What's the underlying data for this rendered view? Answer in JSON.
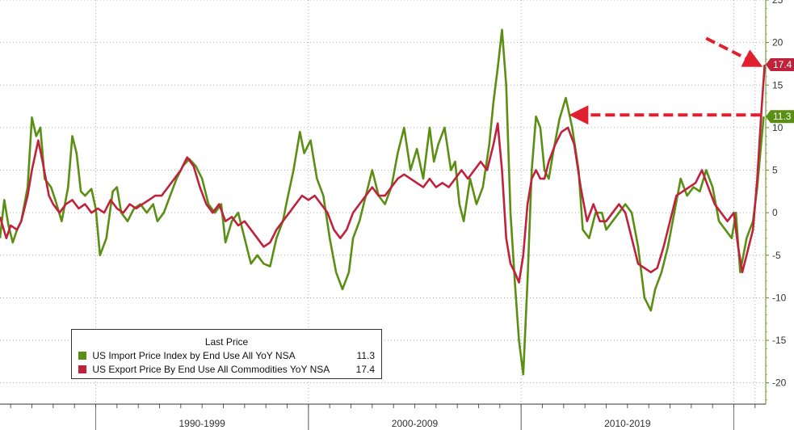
{
  "chart_data": {
    "type": "line",
    "x_range": [
      1985.5,
      2021.5
    ],
    "ylim": [
      -22.5,
      25
    ],
    "y_ticks": [
      25,
      20,
      15,
      10,
      5,
      0,
      -5,
      -10,
      -15,
      -20
    ],
    "y_axis_position": "right",
    "grid": true,
    "grid_style": "dotted horizontal",
    "x_periods": [
      {
        "label": "1990-1999",
        "start": 1990,
        "end": 2000
      },
      {
        "label": "2000-2009",
        "start": 2000,
        "end": 2010
      },
      {
        "label": "2010-2019",
        "start": 2010,
        "end": 2020
      }
    ],
    "legend": {
      "title": "Last Price",
      "placement": "bottom-left",
      "entries": [
        {
          "name": "US Import Price Index by End Use All YoY NSA",
          "value_label": "11.3",
          "color": "#5a8f14"
        },
        {
          "name": "US Export Price By End Use All Commodities YoY NSA",
          "value_label": "17.4",
          "color": "#c0223b"
        }
      ]
    },
    "series": [
      {
        "name": "US Import Price Index by End Use All YoY NSA",
        "color": "#5a8f14",
        "last_value": 11.3,
        "points": [
          [
            1985.5,
            -3
          ],
          [
            1985.7,
            1.5
          ],
          [
            1985.9,
            -1.5
          ],
          [
            1986.1,
            -3.5
          ],
          [
            1986.3,
            -2
          ],
          [
            1986.5,
            -1
          ],
          [
            1986.8,
            3
          ],
          [
            1987.0,
            11.2
          ],
          [
            1987.2,
            9
          ],
          [
            1987.4,
            10
          ],
          [
            1987.6,
            4
          ],
          [
            1987.9,
            3
          ],
          [
            1988.1,
            1.5
          ],
          [
            1988.4,
            -1
          ],
          [
            1988.7,
            3
          ],
          [
            1988.9,
            9
          ],
          [
            1989.1,
            7
          ],
          [
            1989.3,
            2.5
          ],
          [
            1989.5,
            2
          ],
          [
            1989.8,
            2.8
          ],
          [
            1990.0,
            0.5
          ],
          [
            1990.2,
            -5
          ],
          [
            1990.5,
            -3
          ],
          [
            1990.8,
            2.5
          ],
          [
            1991.0,
            3
          ],
          [
            1991.2,
            0
          ],
          [
            1991.5,
            -1
          ],
          [
            1991.8,
            0.5
          ],
          [
            1992.1,
            1
          ],
          [
            1992.4,
            0
          ],
          [
            1992.7,
            1
          ],
          [
            1992.9,
            -1
          ],
          [
            1993.2,
            0
          ],
          [
            1993.5,
            2
          ],
          [
            1993.8,
            4
          ],
          [
            1994.1,
            5.5
          ],
          [
            1994.4,
            6.3
          ],
          [
            1994.7,
            5.5
          ],
          [
            1995.0,
            4
          ],
          [
            1995.3,
            1
          ],
          [
            1995.6,
            0
          ],
          [
            1995.9,
            1
          ],
          [
            1996.1,
            -3.5
          ],
          [
            1996.4,
            -1
          ],
          [
            1996.7,
            0
          ],
          [
            1997.0,
            -3
          ],
          [
            1997.3,
            -6
          ],
          [
            1997.6,
            -5
          ],
          [
            1997.9,
            -6
          ],
          [
            1998.2,
            -6.3
          ],
          [
            1998.5,
            -3
          ],
          [
            1998.8,
            -1
          ],
          [
            1999.0,
            1.5
          ],
          [
            1999.3,
            5
          ],
          [
            1999.6,
            9.5
          ],
          [
            1999.8,
            7
          ],
          [
            2000.1,
            8.5
          ],
          [
            2000.4,
            4
          ],
          [
            2000.7,
            2
          ],
          [
            2001.0,
            -3
          ],
          [
            2001.3,
            -7
          ],
          [
            2001.6,
            -9
          ],
          [
            2001.9,
            -7
          ],
          [
            2002.1,
            -3
          ],
          [
            2002.4,
            -1
          ],
          [
            2002.7,
            2
          ],
          [
            2003.0,
            5
          ],
          [
            2003.3,
            2
          ],
          [
            2003.6,
            1
          ],
          [
            2003.9,
            3
          ],
          [
            2004.2,
            7
          ],
          [
            2004.5,
            10
          ],
          [
            2004.8,
            5
          ],
          [
            2005.1,
            7.5
          ],
          [
            2005.4,
            4
          ],
          [
            2005.7,
            10
          ],
          [
            2005.9,
            6
          ],
          [
            2006.1,
            8
          ],
          [
            2006.4,
            10
          ],
          [
            2006.7,
            5
          ],
          [
            2006.9,
            6
          ],
          [
            2007.1,
            1
          ],
          [
            2007.3,
            -1
          ],
          [
            2007.6,
            4
          ],
          [
            2007.9,
            1
          ],
          [
            2008.2,
            3
          ],
          [
            2008.5,
            8
          ],
          [
            2008.7,
            13
          ],
          [
            2008.9,
            17
          ],
          [
            2009.1,
            21.5
          ],
          [
            2009.3,
            15
          ],
          [
            2009.5,
            0
          ],
          [
            2009.7,
            -8
          ],
          [
            2009.9,
            -15
          ],
          [
            2010.1,
            -19
          ],
          [
            2010.3,
            -8
          ],
          [
            2010.5,
            5
          ],
          [
            2010.7,
            11.3
          ],
          [
            2010.9,
            10
          ],
          [
            2011.1,
            5
          ],
          [
            2011.3,
            4
          ],
          [
            2011.5,
            7
          ],
          [
            2011.8,
            11
          ],
          [
            2012.1,
            13.5
          ],
          [
            2012.4,
            10
          ],
          [
            2012.7,
            5
          ],
          [
            2012.9,
            -2
          ],
          [
            2013.2,
            -3
          ],
          [
            2013.5,
            0
          ],
          [
            2013.8,
            0
          ],
          [
            2014.0,
            -2
          ],
          [
            2014.3,
            -1
          ],
          [
            2014.6,
            0
          ],
          [
            2014.9,
            1
          ],
          [
            2015.2,
            0
          ],
          [
            2015.5,
            -4
          ],
          [
            2015.8,
            -10
          ],
          [
            2016.1,
            -11.5
          ],
          [
            2016.3,
            -9
          ],
          [
            2016.6,
            -7
          ],
          [
            2016.9,
            -4
          ],
          [
            2017.2,
            0
          ],
          [
            2017.5,
            4
          ],
          [
            2017.8,
            2
          ],
          [
            2018.1,
            3
          ],
          [
            2018.4,
            2.5
          ],
          [
            2018.7,
            5
          ],
          [
            2019.0,
            3
          ],
          [
            2019.3,
            -1
          ],
          [
            2019.6,
            -2
          ],
          [
            2019.9,
            -3
          ],
          [
            2020.1,
            0
          ],
          [
            2020.3,
            -7
          ],
          [
            2020.6,
            -3
          ],
          [
            2020.9,
            -1
          ],
          [
            2021.1,
            3
          ],
          [
            2021.4,
            11.3
          ]
        ]
      },
      {
        "name": "US Export Price By End Use All Commodities YoY NSA",
        "color": "#c0223b",
        "last_value": 17.4,
        "points": [
          [
            1985.5,
            -0.5
          ],
          [
            1985.8,
            -3
          ],
          [
            1986.0,
            -1.5
          ],
          [
            1986.3,
            -2
          ],
          [
            1986.5,
            -1
          ],
          [
            1986.8,
            2
          ],
          [
            1987.0,
            5
          ],
          [
            1987.3,
            8.5
          ],
          [
            1987.5,
            6
          ],
          [
            1987.8,
            2
          ],
          [
            1988.0,
            1
          ],
          [
            1988.3,
            0
          ],
          [
            1988.6,
            1
          ],
          [
            1988.9,
            1.5
          ],
          [
            1989.2,
            0.5
          ],
          [
            1989.5,
            1
          ],
          [
            1989.8,
            0
          ],
          [
            1990.1,
            0.5
          ],
          [
            1990.4,
            0
          ],
          [
            1990.7,
            1.5
          ],
          [
            1991.0,
            0.5
          ],
          [
            1991.3,
            0
          ],
          [
            1991.6,
            1
          ],
          [
            1991.9,
            0.5
          ],
          [
            1992.2,
            1
          ],
          [
            1992.5,
            1.5
          ],
          [
            1992.8,
            2
          ],
          [
            1993.1,
            2
          ],
          [
            1993.4,
            3
          ],
          [
            1993.7,
            4
          ],
          [
            1994.0,
            5
          ],
          [
            1994.3,
            6.5
          ],
          [
            1994.6,
            5.5
          ],
          [
            1994.9,
            3
          ],
          [
            1995.2,
            1
          ],
          [
            1995.5,
            0
          ],
          [
            1995.8,
            1
          ],
          [
            1996.1,
            -1
          ],
          [
            1996.4,
            -0.5
          ],
          [
            1996.7,
            -1.5
          ],
          [
            1997.0,
            -1
          ],
          [
            1997.3,
            -2
          ],
          [
            1997.6,
            -3
          ],
          [
            1997.9,
            -4
          ],
          [
            1998.2,
            -3.5
          ],
          [
            1998.5,
            -2
          ],
          [
            1998.8,
            -1
          ],
          [
            1999.1,
            0
          ],
          [
            1999.4,
            1
          ],
          [
            1999.7,
            2
          ],
          [
            2000.0,
            1.5
          ],
          [
            2000.3,
            2
          ],
          [
            2000.6,
            1
          ],
          [
            2000.9,
            0
          ],
          [
            2001.2,
            -2
          ],
          [
            2001.5,
            -3
          ],
          [
            2001.8,
            -2
          ],
          [
            2002.1,
            0
          ],
          [
            2002.4,
            1
          ],
          [
            2002.7,
            2
          ],
          [
            2003.0,
            3
          ],
          [
            2003.3,
            2
          ],
          [
            2003.6,
            2
          ],
          [
            2003.9,
            3
          ],
          [
            2004.2,
            4
          ],
          [
            2004.5,
            4.5
          ],
          [
            2004.8,
            4
          ],
          [
            2005.1,
            3.5
          ],
          [
            2005.4,
            3
          ],
          [
            2005.7,
            4
          ],
          [
            2006.0,
            3
          ],
          [
            2006.3,
            3.5
          ],
          [
            2006.6,
            3
          ],
          [
            2006.9,
            4
          ],
          [
            2007.2,
            5
          ],
          [
            2007.5,
            4
          ],
          [
            2007.8,
            5
          ],
          [
            2008.1,
            6
          ],
          [
            2008.4,
            5
          ],
          [
            2008.7,
            8
          ],
          [
            2008.9,
            10.5
          ],
          [
            2009.1,
            5
          ],
          [
            2009.3,
            -3
          ],
          [
            2009.5,
            -6
          ],
          [
            2009.7,
            -7
          ],
          [
            2009.9,
            -8.2
          ],
          [
            2010.1,
            -5
          ],
          [
            2010.3,
            1
          ],
          [
            2010.5,
            4
          ],
          [
            2010.7,
            5
          ],
          [
            2010.9,
            4
          ],
          [
            2011.1,
            4
          ],
          [
            2011.3,
            6
          ],
          [
            2011.6,
            8
          ],
          [
            2011.9,
            9.5
          ],
          [
            2012.2,
            10
          ],
          [
            2012.5,
            8
          ],
          [
            2012.8,
            3
          ],
          [
            2013.1,
            -1
          ],
          [
            2013.4,
            1
          ],
          [
            2013.7,
            -1
          ],
          [
            2014.0,
            -1
          ],
          [
            2014.3,
            0
          ],
          [
            2014.6,
            1
          ],
          [
            2014.9,
            0
          ],
          [
            2015.2,
            -3
          ],
          [
            2015.5,
            -6
          ],
          [
            2015.8,
            -6.5
          ],
          [
            2016.1,
            -7
          ],
          [
            2016.4,
            -6.5
          ],
          [
            2016.7,
            -4
          ],
          [
            2017.0,
            -1
          ],
          [
            2017.3,
            2
          ],
          [
            2017.6,
            2.5
          ],
          [
            2017.9,
            3
          ],
          [
            2018.2,
            3.5
          ],
          [
            2018.5,
            5
          ],
          [
            2018.8,
            3
          ],
          [
            2019.1,
            1
          ],
          [
            2019.4,
            0
          ],
          [
            2019.7,
            -1
          ],
          [
            2020.0,
            0
          ],
          [
            2020.2,
            -4
          ],
          [
            2020.4,
            -7
          ],
          [
            2020.6,
            -5
          ],
          [
            2020.9,
            -2
          ],
          [
            2021.1,
            4
          ],
          [
            2021.3,
            12
          ],
          [
            2021.45,
            17.4
          ]
        ]
      }
    ],
    "last_labels": [
      {
        "text": "17.4",
        "value": 17.4,
        "color": "#c0223b"
      },
      {
        "text": "11.3",
        "value": 11.3,
        "color": "#5a8f14"
      }
    ]
  }
}
